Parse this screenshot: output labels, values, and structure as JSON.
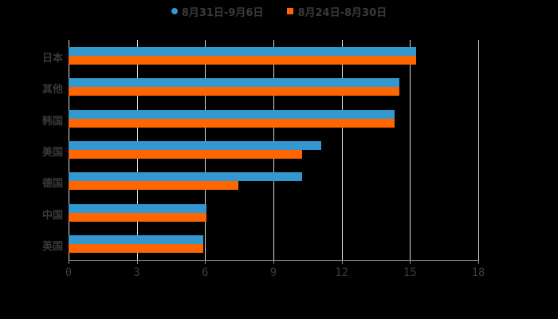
{
  "legend": [
    {
      "label": "8月31日-9月6日",
      "color": "#3498d0",
      "shape": "circle"
    },
    {
      "label": "8月24日-8月30日",
      "color": "#ff6600",
      "shape": "square"
    }
  ],
  "chart_data": {
    "type": "bar",
    "orientation": "horizontal",
    "title": "",
    "xlabel": "",
    "ylabel": "",
    "categories": [
      "日本",
      "其他",
      "韩国",
      "美国",
      "德国",
      "中国",
      "英国"
    ],
    "series": [
      {
        "name": "8月31日-9月6日",
        "color": "#3498d0",
        "values": [
          15.27,
          14.53,
          14.32,
          11.1,
          10.26,
          6.06,
          5.92
        ]
      },
      {
        "name": "8月24日-8月30日",
        "color": "#ff6600",
        "values": [
          15.27,
          14.53,
          14.32,
          10.26,
          7.46,
          6.06,
          5.92
        ]
      }
    ],
    "xlim": [
      0,
      18
    ],
    "xticks": [
      "0",
      "3",
      "6",
      "9",
      "12",
      "15",
      "18"
    ],
    "grid": true,
    "legend_position": "top"
  }
}
